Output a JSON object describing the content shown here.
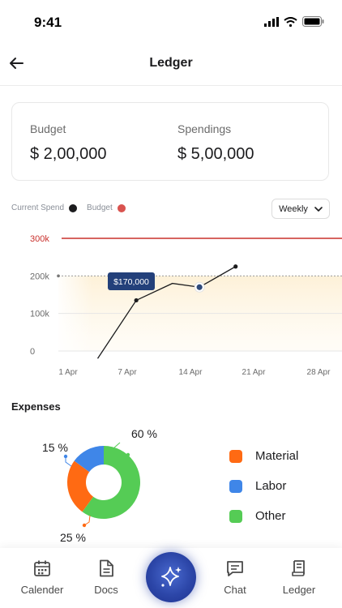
{
  "status_bar": {
    "time": "9:41"
  },
  "header": {
    "title": "Ledger"
  },
  "summary": {
    "budget_label": "Budget",
    "budget_value": "$ 2,00,000",
    "spendings_label": "Spendings",
    "spendings_value": "$ 5,00,000"
  },
  "legend": {
    "current_spend": "Current Spend",
    "budget": "Budget",
    "current_spend_color": "#1c1c1e",
    "budget_color": "#d9534f"
  },
  "period_select": {
    "value": "Weekly"
  },
  "chart_data": {
    "type": "line",
    "y_ticks": [
      "300k",
      "200k",
      "100k",
      "0"
    ],
    "y_tick_values": [
      300000,
      200000,
      100000,
      0
    ],
    "x_ticks": [
      "1 Apr",
      "7 Apr",
      "14 Apr",
      "21 Apr",
      "28 Apr"
    ],
    "ylim": [
      0,
      300000
    ],
    "budget_line": 300000,
    "series": [
      {
        "points": [
          {
            "x": "4 Apr",
            "y": -20000
          },
          {
            "x": "8 Apr",
            "y": 135000
          },
          {
            "x": "12 Apr",
            "y": 180000
          },
          {
            "x": "15 Apr",
            "y": 170000
          },
          {
            "x": "19 Apr",
            "y": 225000
          }
        ]
      }
    ],
    "tooltip": {
      "label": "$170,000"
    }
  },
  "expenses": {
    "title": "Expenses",
    "chart_data": {
      "type": "pie",
      "slices": [
        {
          "name": "Other",
          "value": 60,
          "label": "60 %",
          "color": "#55cc55"
        },
        {
          "name": "Material",
          "value": 25,
          "label": "25 %",
          "color": "#ff6a13"
        },
        {
          "name": "Labor",
          "value": 15,
          "label": "15 %",
          "color": "#3f86e8"
        }
      ]
    },
    "legend": [
      {
        "label": "Material",
        "color": "#ff6a13"
      },
      {
        "label": "Labor",
        "color": "#3f86e8"
      },
      {
        "label": "Other",
        "color": "#55cc55"
      }
    ]
  },
  "nav": {
    "items": [
      {
        "label": "Calender",
        "icon": "calendar-icon"
      },
      {
        "label": "Docs",
        "icon": "document-icon"
      },
      {
        "label": "Chat",
        "icon": "chat-icon"
      },
      {
        "label": "Ledger",
        "icon": "ledger-icon"
      }
    ],
    "center_icon": "sparkle-icon"
  }
}
